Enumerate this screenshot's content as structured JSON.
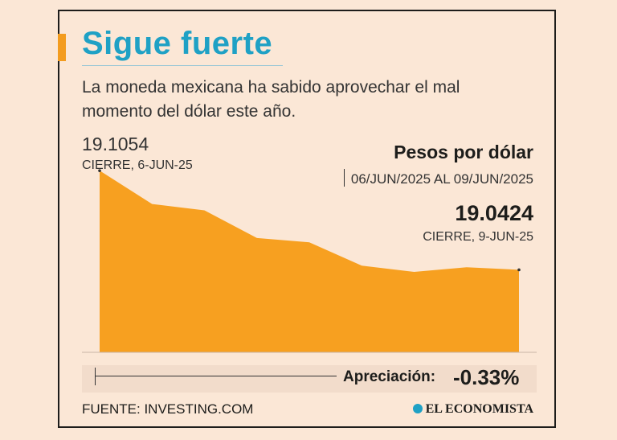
{
  "title": "Sigue fuerte",
  "subtitle": "La moneda mexicana ha sabido aprovechar el mal momento del dólar este año.",
  "start": {
    "value": "19.1054",
    "label": "CIERRE, 6-JUN-25"
  },
  "end": {
    "value": "19.0424",
    "label": "CIERRE, 9-JUN-25"
  },
  "series_title": "Pesos por dólar",
  "date_range": "06/JUN/2025 AL 09/JUN/2025",
  "change": {
    "label": "Apreciación:",
    "value": "-0.33%"
  },
  "source": "FUENTE: INVESTING.COM",
  "brand": "EL ECONOMISTA",
  "colors": {
    "title": "#1fa1c5",
    "area": "#f7a020",
    "accent": "#f39c1f",
    "background": "#fbe7d6"
  },
  "chart_data": {
    "type": "area",
    "values": [
      19.1054,
      19.0842,
      19.0802,
      19.0626,
      19.0599,
      19.0451,
      19.0411,
      19.044,
      19.0424
    ],
    "ylim": [
      18.99,
      19.13
    ],
    "grid": false,
    "unit": "Pesos por dólar"
  }
}
